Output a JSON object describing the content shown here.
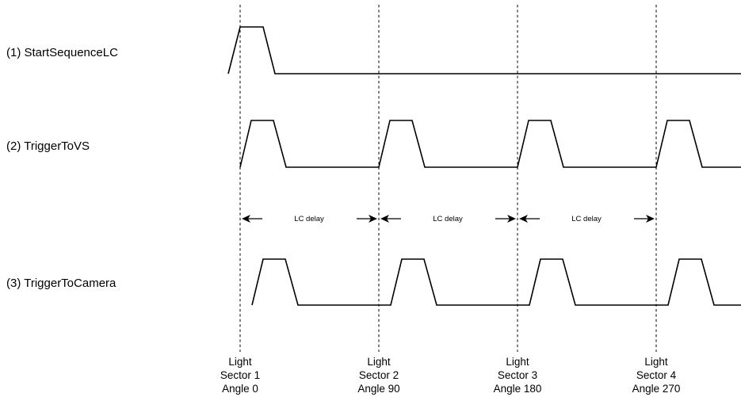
{
  "signals": [
    {
      "label": "(1) StartSequenceLC"
    },
    {
      "label": "(2) TriggerToVS"
    },
    {
      "label": "(3) TriggerToCamera"
    }
  ],
  "delays": [
    {
      "label": "LC delay"
    },
    {
      "label": "LC delay"
    },
    {
      "label": "LC delay"
    }
  ],
  "markers": [
    {
      "line1": "Light",
      "line2": "Sector 1",
      "line3": "Angle 0"
    },
    {
      "line1": "Light",
      "line2": "Sector 2",
      "line3": "Angle 90"
    },
    {
      "line1": "Light",
      "line2": "Sector 3",
      "line3": "Angle 180"
    },
    {
      "line1": "Light",
      "line2": "Sector 4",
      "line3": "Angle 270"
    }
  ],
  "colors": {
    "line": "#000000",
    "background": "#ffffff"
  }
}
